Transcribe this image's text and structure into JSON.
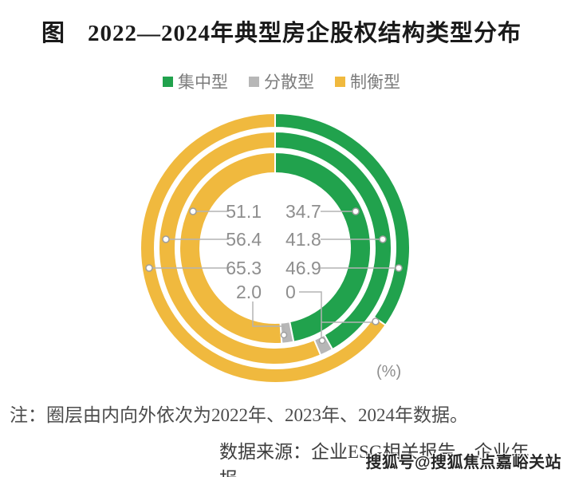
{
  "title": {
    "prefix": "图",
    "text": "2022—2024年典型房企股权结构类型分布"
  },
  "legend": [
    {
      "label": "集中型",
      "color": "#21a24d"
    },
    {
      "label": "分散型",
      "color": "#b7b7b7"
    },
    {
      "label": "制衡型",
      "color": "#f0b93e"
    }
  ],
  "chart_data": {
    "type": "donut",
    "title": "2022—2024年典型房企股权结构类型分布",
    "unit": "%",
    "series_names": [
      "集中型",
      "分散型",
      "制衡型"
    ],
    "rings": [
      {
        "year": "2022",
        "position": "inner",
        "values": [
          46.9,
          2.0,
          51.1
        ]
      },
      {
        "year": "2023",
        "position": "middle",
        "values": [
          41.8,
          1.8,
          56.4
        ]
      },
      {
        "year": "2024",
        "position": "outer",
        "values": [
          34.7,
          0,
          65.3
        ]
      }
    ],
    "start_angle_deg": 0,
    "direction": "clockwise",
    "rings_order": "inner to outer = 2022, 2023, 2024",
    "unlabeled_segment_estimate": {
      "year": "2023",
      "series": "分散型",
      "value": 1.8
    }
  },
  "data_labels": {
    "left_column": [
      "51.1",
      "56.4",
      "65.3",
      "2.0"
    ],
    "right_column": [
      "34.7",
      "41.8",
      "46.9",
      "0"
    ]
  },
  "unit_label": "(%)",
  "note": "注：圈层由内向外依次为2022年、2023年、2024年数据。",
  "source": "数据来源：企业ESG相关报告、企业年报。",
  "watermark": "搜狐号@搜狐焦点嘉峪关站"
}
